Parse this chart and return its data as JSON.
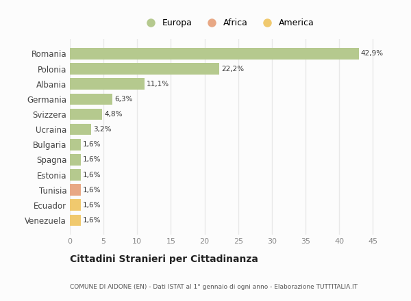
{
  "countries": [
    "Romania",
    "Polonia",
    "Albania",
    "Germania",
    "Svizzera",
    "Ucraina",
    "Bulgaria",
    "Spagna",
    "Estonia",
    "Tunisia",
    "Ecuador",
    "Venezuela"
  ],
  "values": [
    42.9,
    22.2,
    11.1,
    6.3,
    4.8,
    3.2,
    1.6,
    1.6,
    1.6,
    1.6,
    1.6,
    1.6
  ],
  "labels": [
    "42,9%",
    "22,2%",
    "11,1%",
    "6,3%",
    "4,8%",
    "3,2%",
    "1,6%",
    "1,6%",
    "1,6%",
    "1,6%",
    "1,6%",
    "1,6%"
  ],
  "colors": [
    "#b5c98e",
    "#b5c98e",
    "#b5c98e",
    "#b5c98e",
    "#b5c98e",
    "#b5c98e",
    "#b5c98e",
    "#b5c98e",
    "#b5c98e",
    "#e8a885",
    "#f0c96e",
    "#f0c96e"
  ],
  "legend": [
    {
      "label": "Europa",
      "color": "#b5c98e"
    },
    {
      "label": "Africa",
      "color": "#e8a885"
    },
    {
      "label": "America",
      "color": "#f0c96e"
    }
  ],
  "xlim": [
    0,
    47
  ],
  "xticks": [
    0,
    5,
    10,
    15,
    20,
    25,
    30,
    35,
    40,
    45
  ],
  "title": "Cittadini Stranieri per Cittadinanza",
  "subtitle": "COMUNE DI AIDONE (EN) - Dati ISTAT al 1° gennaio di ogni anno - Elaborazione TUTTITALIA.IT",
  "background_color": "#fcfcfc",
  "grid_color": "#e8e8e8",
  "bar_height": 0.75
}
